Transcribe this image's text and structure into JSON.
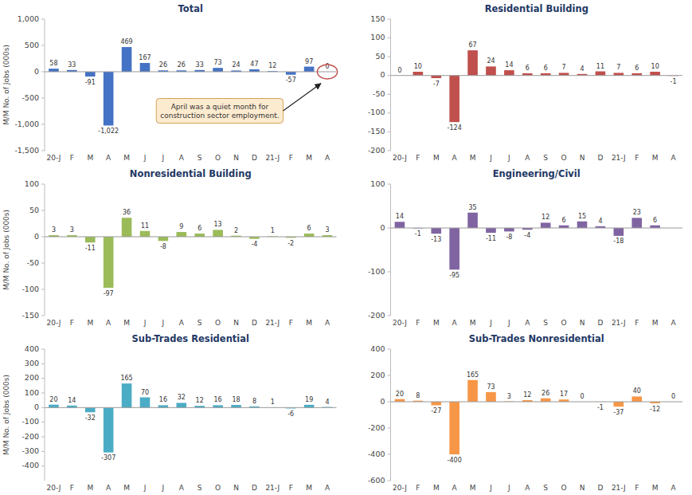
{
  "chart_data": [
    {
      "type": "bar",
      "title": "Total",
      "categories": [
        "20-J",
        "F",
        "M",
        "A",
        "M",
        "J",
        "J",
        "A",
        "S",
        "O",
        "N",
        "D",
        "21-J",
        "F",
        "M",
        "A"
      ],
      "values": [
        58,
        33,
        -91,
        -1022,
        469,
        167,
        26,
        26,
        33,
        73,
        24,
        47,
        12,
        -57,
        97,
        0
      ],
      "value_labels": [
        "58",
        "33",
        "-91",
        "-1,022",
        "469",
        "167",
        "26",
        "26",
        "33",
        "73",
        "24",
        "47",
        "12",
        "-57",
        "97",
        "0"
      ],
      "color": "#4472C4",
      "ylim": [
        -1500,
        1000
      ],
      "yticks": [
        {
          "value": -1500,
          "label": "-1,500"
        },
        {
          "value": -1000,
          "label": "-1,000"
        },
        -500,
        0,
        500,
        {
          "value": 1000,
          "label": "1,000"
        }
      ],
      "ylabel": "M/M No. of Jobs (000s)",
      "annotation": "April was a quiet month for\nconstruction sector employment.",
      "data_labels": true,
      "grid": false
    },
    {
      "type": "bar",
      "title": "Residential Building",
      "categories": [
        "20-J",
        "F",
        "M",
        "A",
        "M",
        "J",
        "J",
        "A",
        "S",
        "O",
        "N",
        "D",
        "21-J",
        "F",
        "M",
        "A"
      ],
      "values": [
        0,
        10,
        -7,
        -124,
        67,
        24,
        14,
        6,
        6,
        7,
        4,
        11,
        7,
        6,
        10,
        -1
      ],
      "color": "#C0504D",
      "ylim": [
        -200,
        150
      ],
      "yticks": [
        -200,
        -150,
        -100,
        -50,
        0,
        50,
        100,
        150
      ],
      "data_labels": true,
      "grid": false
    },
    {
      "type": "bar",
      "title": "Nonresidential Building",
      "categories": [
        "20-J",
        "F",
        "M",
        "A",
        "M",
        "J",
        "J",
        "A",
        "S",
        "O",
        "N",
        "D",
        "21-J",
        "F",
        "M",
        "A"
      ],
      "values": [
        3,
        3,
        -11,
        -97,
        36,
        11,
        -8,
        9,
        6,
        13,
        2,
        -4,
        1,
        -2,
        6,
        3
      ],
      "color": "#9BBB59",
      "ylim": [
        -150,
        100
      ],
      "yticks": [
        -150,
        -100,
        -50,
        0,
        50,
        100
      ],
      "ylabel": "M/M No. of Jobs (000s)",
      "data_labels": true,
      "grid": false
    },
    {
      "type": "bar",
      "title": "Engineering/Civil",
      "categories": [
        "20-J",
        "F",
        "M",
        "A",
        "M",
        "J",
        "J",
        "A",
        "S",
        "O",
        "N",
        "D",
        "21-J",
        "F",
        "M",
        "A"
      ],
      "values": [
        14,
        -1,
        -13,
        -95,
        35,
        -11,
        -8,
        -4,
        12,
        6,
        15,
        4,
        -18,
        23,
        6,
        0
      ],
      "value_labels": [
        "14",
        "-1",
        "-13",
        "-95",
        "35",
        "-11",
        "-8",
        "-4",
        "12",
        "6",
        "15",
        "4",
        "-18",
        "23",
        "6",
        null
      ],
      "color": "#8064A2",
      "ylim": [
        -200,
        100
      ],
      "yticks": [
        -200,
        -100,
        0,
        100
      ],
      "data_labels": true,
      "grid": false
    },
    {
      "type": "bar",
      "title": "Sub-Trades Residential",
      "categories": [
        "20-J",
        "F",
        "M",
        "A",
        "M",
        "J",
        "J",
        "A",
        "S",
        "O",
        "N",
        "D",
        "21-J",
        "F",
        "M",
        "A"
      ],
      "values": [
        20,
        14,
        -32,
        -307,
        165,
        70,
        16,
        32,
        12,
        16,
        18,
        8,
        1,
        -6,
        19,
        4
      ],
      "color": "#4BACC6",
      "ylim": [
        -500,
        400
      ],
      "yticks": [
        -400,
        -300,
        -200,
        -100,
        0,
        100,
        200,
        300,
        400
      ],
      "ylabel": "M/M No. of Jobs (000s)",
      "data_labels": true,
      "grid": false
    },
    {
      "type": "bar",
      "title": "Sub-Trades Nonresidential",
      "categories": [
        "20-J",
        "F",
        "M",
        "A",
        "M",
        "J",
        "J",
        "A",
        "S",
        "O",
        "N",
        "D",
        "21-J",
        "F",
        "M",
        "A"
      ],
      "values": [
        20,
        8,
        -27,
        -400,
        165,
        73,
        3,
        12,
        26,
        17,
        0,
        -1,
        -37,
        40,
        -12,
        0
      ],
      "color": "#F79646",
      "ylim": [
        -600,
        400
      ],
      "yticks": [
        -600,
        -400,
        -200,
        0,
        200,
        400
      ],
      "data_labels": true,
      "grid": false
    }
  ]
}
